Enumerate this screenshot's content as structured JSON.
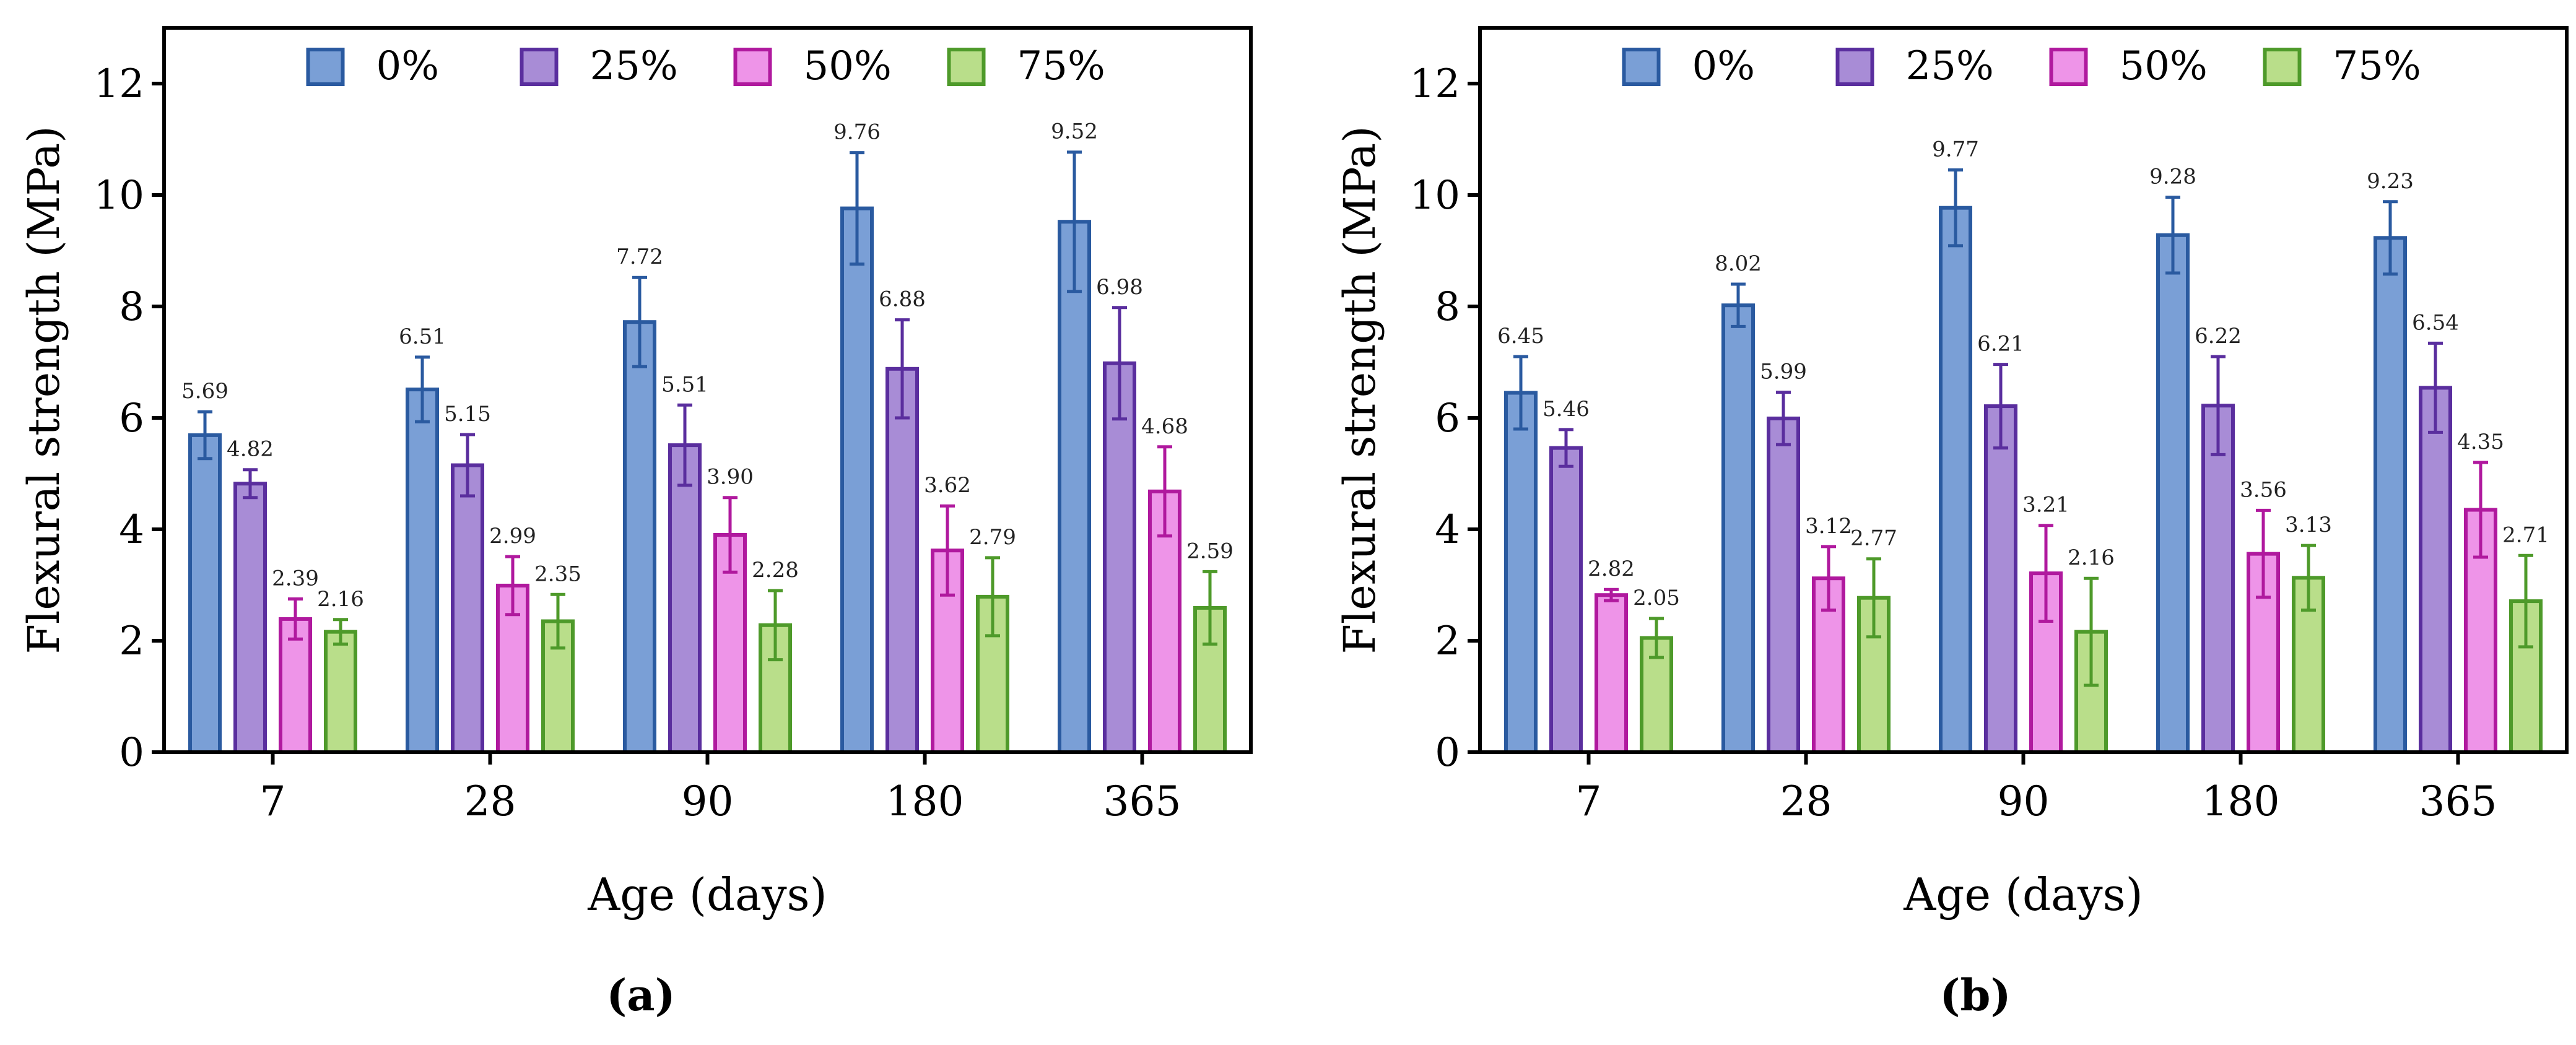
{
  "figure": {
    "panels": [
      "(a)",
      "(b)"
    ]
  },
  "chart_data": [
    {
      "type": "bar",
      "panel_label": "(a)",
      "categories": [
        "7",
        "28",
        "90",
        "180",
        "365"
      ],
      "xlabel": "Age (days)",
      "ylabel": "Flexural strength (MPa)",
      "ylim": [
        0,
        13
      ],
      "yticks": [
        0,
        2,
        4,
        6,
        8,
        10,
        12
      ],
      "legend_position": "top",
      "series": [
        {
          "name": "0%",
          "fill": "#7A9FD6",
          "stroke": "#2A5AA0",
          "values": [
            5.69,
            6.51,
            7.72,
            9.76,
            9.52
          ],
          "labels": [
            "5.69",
            "6.51",
            "7.72",
            "9.76",
            "9.52"
          ],
          "errors": [
            0.42,
            0.58,
            0.8,
            1.0,
            1.25
          ]
        },
        {
          "name": "25%",
          "fill": "#A88CD6",
          "stroke": "#5A2E9E",
          "values": [
            4.82,
            5.15,
            5.51,
            6.88,
            6.98
          ],
          "labels": [
            "4.82",
            "5.15",
            "5.51",
            "6.88",
            "6.98"
          ],
          "errors": [
            0.25,
            0.55,
            0.72,
            0.88,
            1.0
          ]
        },
        {
          "name": "50%",
          "fill": "#EE94E8",
          "stroke": "#B0199E",
          "values": [
            2.39,
            2.99,
            3.9,
            3.62,
            4.68
          ],
          "labels": [
            "2.39",
            "2.99",
            "3.90",
            "3.62",
            "4.68"
          ],
          "errors": [
            0.36,
            0.52,
            0.67,
            0.8,
            0.8
          ]
        },
        {
          "name": "75%",
          "fill": "#B9DE8A",
          "stroke": "#4E9A2A",
          "values": [
            2.16,
            2.35,
            2.28,
            2.79,
            2.59
          ],
          "labels": [
            "2.16",
            "2.35",
            "2.28",
            "2.79",
            "2.59"
          ],
          "errors": [
            0.22,
            0.48,
            0.62,
            0.7,
            0.65
          ]
        }
      ]
    },
    {
      "type": "bar",
      "panel_label": "(b)",
      "categories": [
        "7",
        "28",
        "90",
        "180",
        "365"
      ],
      "xlabel": "Age (days)",
      "ylabel": "Flexural strength (MPa)",
      "ylim": [
        0,
        13
      ],
      "yticks": [
        0,
        2,
        4,
        6,
        8,
        10,
        12
      ],
      "legend_position": "top",
      "series": [
        {
          "name": "0%",
          "fill": "#7A9FD6",
          "stroke": "#2A5AA0",
          "values": [
            6.45,
            8.02,
            9.77,
            9.28,
            9.23
          ],
          "labels": [
            "6.45",
            "8.02",
            "9.77",
            "9.28",
            "9.23"
          ],
          "errors": [
            0.65,
            0.38,
            0.68,
            0.68,
            0.65
          ]
        },
        {
          "name": "25%",
          "fill": "#A88CD6",
          "stroke": "#5A2E9E",
          "values": [
            5.46,
            5.99,
            6.21,
            6.22,
            6.54
          ],
          "labels": [
            "5.46",
            "5.99",
            "6.21",
            "6.22",
            "6.54"
          ],
          "errors": [
            0.33,
            0.47,
            0.75,
            0.88,
            0.8
          ]
        },
        {
          "name": "50%",
          "fill": "#EE94E8",
          "stroke": "#B0199E",
          "values": [
            2.82,
            3.12,
            3.21,
            3.56,
            4.35
          ],
          "labels": [
            "2.82",
            "3.12",
            "3.21",
            "3.56",
            "4.35"
          ],
          "errors": [
            0.1,
            0.57,
            0.86,
            0.78,
            0.85
          ]
        },
        {
          "name": "75%",
          "fill": "#B9DE8A",
          "stroke": "#4E9A2A",
          "values": [
            2.05,
            2.77,
            2.16,
            3.13,
            2.71
          ],
          "labels": [
            "2.05",
            "2.77",
            "2.16",
            "3.13",
            "2.71"
          ],
          "errors": [
            0.35,
            0.7,
            0.96,
            0.58,
            0.82
          ]
        }
      ]
    }
  ]
}
